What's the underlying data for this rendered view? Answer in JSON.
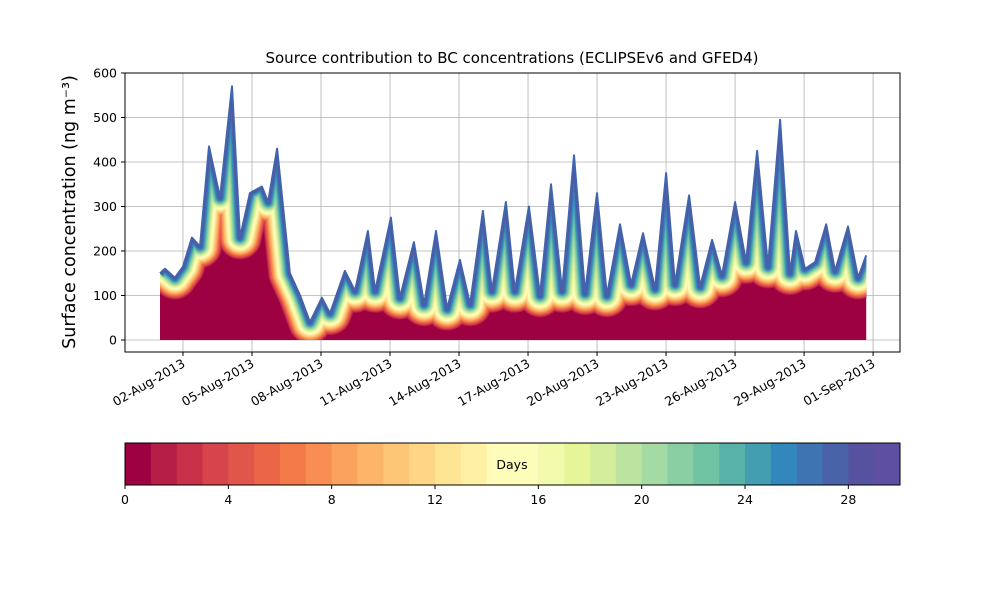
{
  "chart_data": {
    "type": "area",
    "title": "Source contribution to BC concentrations (ECLIPSEv6 and GFED4)",
    "ylabel": "Surface concentration (ng m⁻³)",
    "x": [
      1.0,
      1.22,
      1.65,
      2.0,
      2.39,
      2.74,
      3.13,
      3.61,
      4.13,
      4.48,
      4.91,
      5.43,
      5.7,
      6.09,
      6.65,
      7.09,
      7.52,
      8.04,
      8.39,
      9.04,
      9.48,
      10.04,
      10.35,
      11.04,
      11.43,
      12.04,
      12.48,
      13.0,
      13.48,
      14.04,
      14.48,
      15.04,
      15.43,
      16.04,
      16.43,
      17.04,
      17.52,
      18.0,
      18.48,
      19.0,
      19.48,
      20.0,
      20.43,
      21.0,
      21.48,
      22.0,
      22.52,
      23.0,
      23.39,
      24.0,
      24.48,
      25.0,
      25.43,
      26.0,
      26.48,
      26.96,
      27.43,
      27.96,
      28.39,
      28.65,
      29.04,
      29.48,
      29.96,
      30.35,
      30.91,
      31.35,
      31.7
    ],
    "series": [
      {
        "color": "#4065ad",
        "values": [
          150,
          160,
          140,
          165,
          230,
          210,
          435,
          320,
          570,
          230,
          330,
          345,
          310,
          430,
          150,
          100,
          40,
          95,
          60,
          155,
          110,
          245,
          110,
          275,
          95,
          220,
          80,
          245,
          70,
          180,
          80,
          290,
          110,
          310,
          110,
          300,
          100,
          350,
          110,
          415,
          105,
          330,
          100,
          260,
          125,
          240,
          115,
          375,
          125,
          325,
          120,
          225,
          145,
          310,
          175,
          425,
          165,
          495,
          150,
          245,
          160,
          175,
          260,
          155,
          255,
          140,
          190
        ]
      }
    ],
    "xlim": [
      -0.52,
      33.17
    ],
    "ylim": [
      -27,
      600
    ],
    "xticks": [
      {
        "value": 2,
        "label": "02-Aug-2013"
      },
      {
        "value": 5,
        "label": "05-Aug-2013"
      },
      {
        "value": 8,
        "label": "08-Aug-2013"
      },
      {
        "value": 11,
        "label": "11-Aug-2013"
      },
      {
        "value": 14,
        "label": "14-Aug-2013"
      },
      {
        "value": 17,
        "label": "17-Aug-2013"
      },
      {
        "value": 20,
        "label": "20-Aug-2013"
      },
      {
        "value": 23,
        "label": "23-Aug-2013"
      },
      {
        "value": 26,
        "label": "26-Aug-2013"
      },
      {
        "value": 29,
        "label": "29-Aug-2013"
      },
      {
        "value": 32,
        "label": "01-Sep-2013"
      }
    ],
    "yticks": [
      0,
      100,
      200,
      300,
      400,
      500,
      600
    ],
    "grid": true,
    "colorbar": {
      "label": "Days",
      "lim": [
        0,
        30
      ],
      "ticks": [
        0,
        4,
        8,
        12,
        16,
        20,
        24,
        28
      ],
      "colors": [
        "#9e0142",
        "#b41e47",
        "#c8304a",
        "#d8444c",
        "#e1564a",
        "#ea6646",
        "#f47a4a",
        "#f88e53",
        "#fba35e",
        "#fdb56a",
        "#fdc677",
        "#fed686",
        "#fee593",
        "#fff0a6",
        "#fffbb8",
        "#fbfdb8",
        "#f2faac",
        "#e6f598",
        "#d3ed9c",
        "#bce4a0",
        "#a4daa4",
        "#8acfa4",
        "#70c4a4",
        "#58b2a9",
        "#449eb1",
        "#3288bd",
        "#3f74b2",
        "#4a62a8",
        "#5752a0",
        "#5e4fa2"
      ]
    }
  }
}
